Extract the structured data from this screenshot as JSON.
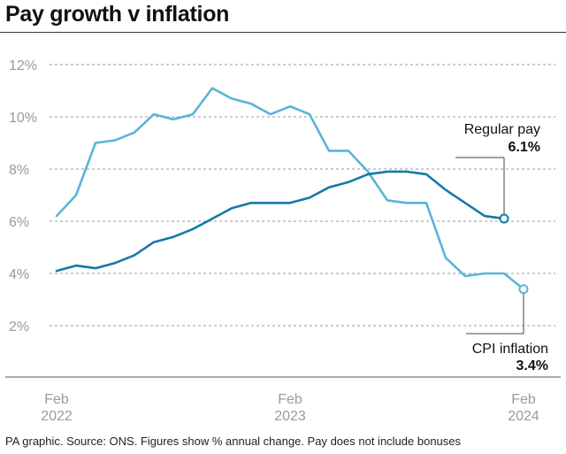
{
  "title": "Pay growth v inflation",
  "footer": "PA graphic. Source: ONS. Figures show % annual change. Pay does not include bonuses",
  "colors": {
    "regular_pay": "#1479a8",
    "cpi_inflation": "#5ab4d9"
  },
  "chart_data": {
    "type": "line",
    "ylim": [
      0,
      13
    ],
    "yticks": [
      {
        "value": 2,
        "label": "2%"
      },
      {
        "value": 4,
        "label": "4%"
      },
      {
        "value": 6,
        "label": "6%"
      },
      {
        "value": 8,
        "label": "8%"
      },
      {
        "value": 10,
        "label": "10%"
      },
      {
        "value": 12,
        "label": "12%"
      }
    ],
    "xticks": [
      {
        "index": 0,
        "line1": "Feb",
        "line2": "2022"
      },
      {
        "index": 12,
        "line1": "Feb",
        "line2": "2023"
      },
      {
        "index": 24,
        "line1": "Feb",
        "line2": "2024"
      }
    ],
    "grid": true,
    "series": [
      {
        "name": "CPI inflation",
        "label_value": "3.4%",
        "values": [
          6.2,
          7.0,
          9.0,
          9.1,
          9.4,
          10.1,
          9.9,
          10.1,
          11.1,
          10.7,
          10.5,
          10.1,
          10.4,
          10.1,
          8.7,
          8.7,
          7.9,
          6.8,
          6.7,
          6.7,
          4.6,
          3.9,
          4.0,
          4.0,
          3.4
        ]
      },
      {
        "name": "Regular pay",
        "label_value": "6.1%",
        "values": [
          4.1,
          4.3,
          4.2,
          4.4,
          4.7,
          5.2,
          5.4,
          5.7,
          6.1,
          6.5,
          6.7,
          6.7,
          6.7,
          6.9,
          7.3,
          7.5,
          7.8,
          7.9,
          7.9,
          7.8,
          7.2,
          6.7,
          6.2,
          6.1
        ]
      }
    ]
  }
}
